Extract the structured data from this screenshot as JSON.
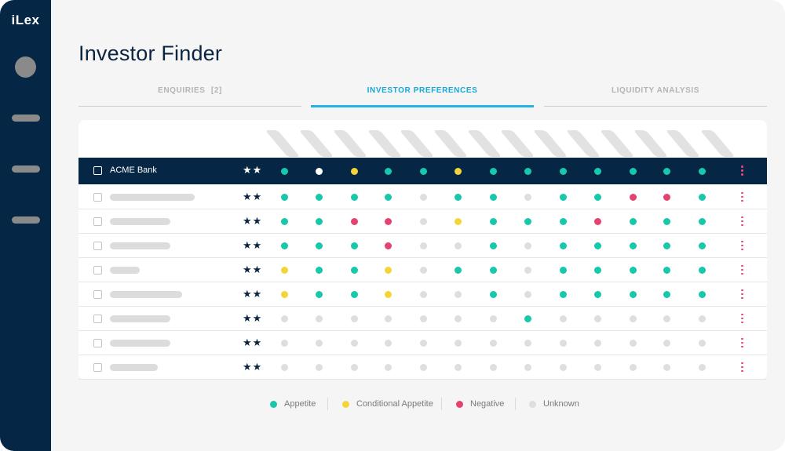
{
  "app": {
    "logo": "iLex"
  },
  "page": {
    "title": "Investor Finder"
  },
  "tabs": [
    {
      "label": "ENQUIRIES",
      "badge": "[2]",
      "active": false
    },
    {
      "label": "INVESTOR PREFERENCES",
      "active": true
    },
    {
      "label": "LIQUIDITY ANALYSIS",
      "active": false
    }
  ],
  "colors": {
    "appetite": "#17c8ad",
    "conditional": "#f5d43b",
    "negative": "#e5436f",
    "unknown": "#dedede",
    "highlight_unknown": "#ffffff",
    "sidebar": "#062646",
    "accent": "#23b3e3"
  },
  "table": {
    "column_count": 13,
    "rows": [
      {
        "name": "ACME Bank",
        "stars": "★★",
        "highlighted": true,
        "prefs": [
          "A",
          "U",
          "C",
          "A",
          "A",
          "C",
          "A",
          "A",
          "A",
          "A",
          "A",
          "A",
          "A"
        ]
      },
      {
        "stars": "★★",
        "prefs": [
          "A",
          "A",
          "A",
          "A",
          "U",
          "A",
          "A",
          "U",
          "A",
          "A",
          "N",
          "N",
          "A"
        ]
      },
      {
        "stars": "★★",
        "prefs": [
          "A",
          "A",
          "N",
          "N",
          "U",
          "C",
          "A",
          "A",
          "A",
          "N",
          "A",
          "A",
          "A"
        ]
      },
      {
        "stars": "★★",
        "prefs": [
          "A",
          "A",
          "A",
          "N",
          "U",
          "U",
          "A",
          "U",
          "A",
          "A",
          "A",
          "A",
          "A"
        ]
      },
      {
        "stars": "★★",
        "prefs": [
          "C",
          "A",
          "A",
          "C",
          "U",
          "A",
          "A",
          "U",
          "A",
          "A",
          "A",
          "A",
          "A"
        ]
      },
      {
        "stars": "★★",
        "prefs": [
          "C",
          "A",
          "A",
          "C",
          "U",
          "U",
          "A",
          "U",
          "A",
          "A",
          "A",
          "A",
          "A"
        ]
      },
      {
        "stars": "★★",
        "prefs": [
          "U",
          "U",
          "U",
          "U",
          "U",
          "U",
          "U",
          "A",
          "U",
          "U",
          "U",
          "U",
          "U"
        ]
      },
      {
        "stars": "★★",
        "prefs": [
          "U",
          "U",
          "U",
          "U",
          "U",
          "U",
          "U",
          "U",
          "U",
          "U",
          "U",
          "U",
          "U"
        ]
      },
      {
        "stars": "★★",
        "prefs": [
          "U",
          "U",
          "U",
          "U",
          "U",
          "U",
          "U",
          "U",
          "U",
          "U",
          "U",
          "U",
          "U"
        ]
      }
    ]
  },
  "legend": [
    {
      "key": "A",
      "label": "Appetite"
    },
    {
      "key": "C",
      "label": "Conditional Appetite"
    },
    {
      "key": "N",
      "label": "Negative"
    },
    {
      "key": "U",
      "label": "Unknown"
    }
  ]
}
